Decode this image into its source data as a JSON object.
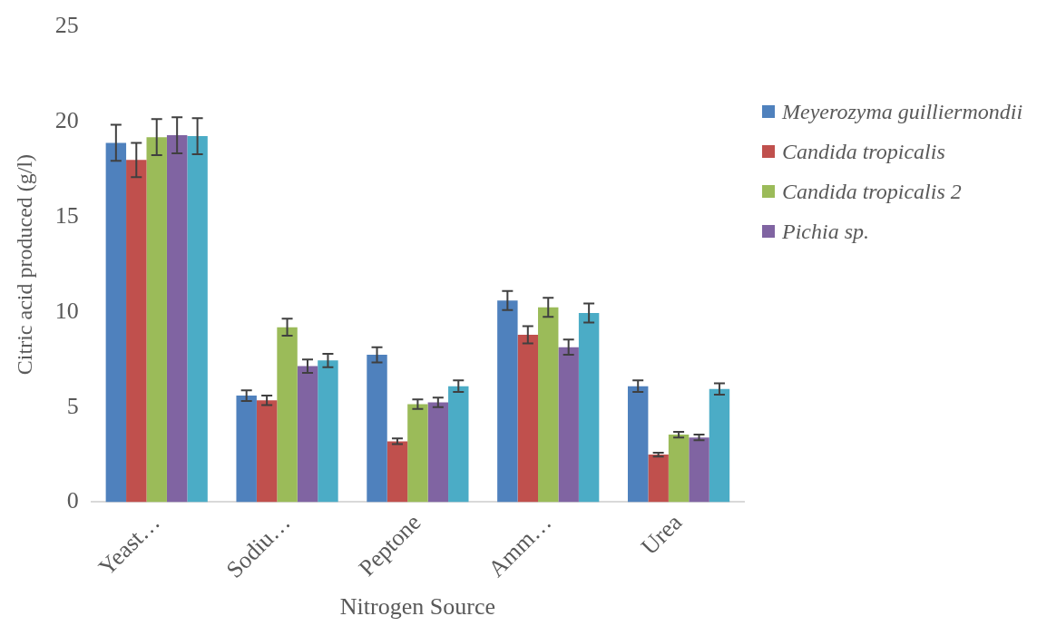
{
  "chart_data": {
    "type": "bar",
    "xlabel": "Nitrogen Source",
    "ylabel": "Citric acid produced (g/l)",
    "categories": [
      "Yeast…",
      "Sodiu…",
      "Peptone",
      "Amm…",
      "Urea"
    ],
    "series": [
      {
        "name": "Meyerozyma guilliermondii",
        "color": "#4f81bd",
        "values": [
          18.9,
          5.6,
          7.75,
          10.6,
          6.1
        ],
        "errors": [
          0.95,
          0.28,
          0.4,
          0.5,
          0.3
        ]
      },
      {
        "name": "Candida tropicalis",
        "color": "#c0504d",
        "values": [
          18.0,
          5.35,
          3.2,
          8.8,
          2.5
        ],
        "errors": [
          0.9,
          0.25,
          0.15,
          0.45,
          0.1
        ]
      },
      {
        "name": "Candida tropicalis 2",
        "color": "#9bbb59",
        "values": [
          19.2,
          9.2,
          5.15,
          10.25,
          3.55
        ],
        "errors": [
          0.95,
          0.45,
          0.25,
          0.5,
          0.15
        ]
      },
      {
        "name": "Pichia sp.",
        "color": "#8064a2",
        "values": [
          19.3,
          7.15,
          5.25,
          8.15,
          3.4
        ],
        "errors": [
          0.95,
          0.35,
          0.25,
          0.4,
          0.15
        ]
      },
      {
        "color": "#4bacc6",
        "values": [
          19.25,
          7.45,
          6.1,
          9.95,
          5.95
        ],
        "errors": [
          0.95,
          0.35,
          0.3,
          0.5,
          0.3
        ]
      }
    ],
    "ylim": [
      0,
      25
    ],
    "yticks": [
      0,
      5,
      10,
      15,
      20,
      25
    ],
    "grid": false,
    "legend": "right"
  }
}
